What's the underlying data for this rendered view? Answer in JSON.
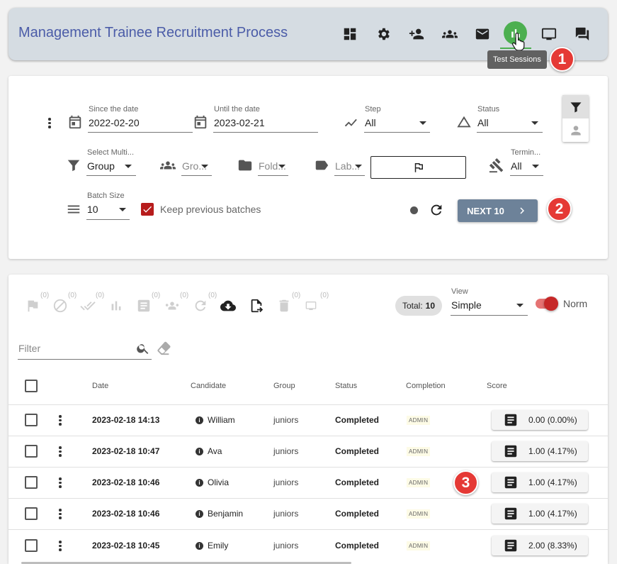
{
  "header": {
    "title": "Management Trainee Recruitment Process",
    "icons": [
      "dashboard-icon",
      "settings-icon",
      "add-person-icon",
      "group-icon",
      "mail-icon",
      "bar-chart-icon",
      "monitor-icon",
      "chat-icon"
    ],
    "tooltip": "Test Sessions",
    "accent": "#4caf50"
  },
  "badges": [
    "1",
    "2",
    "3"
  ],
  "filters": {
    "since_label": "Since the date",
    "since_value": "2022-02-20",
    "until_label": "Until the date",
    "until_value": "2023-02-21",
    "step_label": "Step",
    "step_value": "All",
    "status_label": "Status",
    "status_value": "All",
    "multi_label": "Select Multi...",
    "multi_value": "Group",
    "group_placeholder": "Gro...",
    "folder_placeholder": "Fold...",
    "label_placeholder": "Lab...",
    "termin_label": "Termin...",
    "termin_value": "All",
    "batch_label": "Batch Size",
    "batch_value": "10",
    "keep_label": "Keep previous batches",
    "next_label": "NEXT 10"
  },
  "toolbar": {
    "counts": [
      "(0)",
      "(0)",
      "(0)",
      "(0)",
      "(0)",
      "(0)",
      "(0)",
      "(0)"
    ],
    "total_label": "Total:",
    "total_value": "10",
    "view_label": "View",
    "view_value": "Simple",
    "toggle_label": "Norm",
    "filter_placeholder": "Filter"
  },
  "table": {
    "columns": [
      "Date",
      "Candidate",
      "Group",
      "Status",
      "Completion",
      "Score"
    ],
    "rows": [
      {
        "date": "2023-02-18 14:13",
        "candidate": "William",
        "group": "juniors",
        "status": "Completed",
        "completion": "ADMIN",
        "score": "0.00 (0.00%)"
      },
      {
        "date": "2023-02-18 10:47",
        "candidate": "Ava",
        "group": "juniors",
        "status": "Completed",
        "completion": "ADMIN",
        "score": "1.00 (4.17%)"
      },
      {
        "date": "2023-02-18 10:46",
        "candidate": "Olivia",
        "group": "juniors",
        "status": "Completed",
        "completion": "ADMIN",
        "score": "1.00 (4.17%)"
      },
      {
        "date": "2023-02-18 10:46",
        "candidate": "Benjamin",
        "group": "juniors",
        "status": "Completed",
        "completion": "ADMIN",
        "score": "1.00 (4.17%)"
      },
      {
        "date": "2023-02-18 10:45",
        "candidate": "Emily",
        "group": "juniors",
        "status": "Completed",
        "completion": "ADMIN",
        "score": "2.00 (8.33%)"
      }
    ]
  }
}
